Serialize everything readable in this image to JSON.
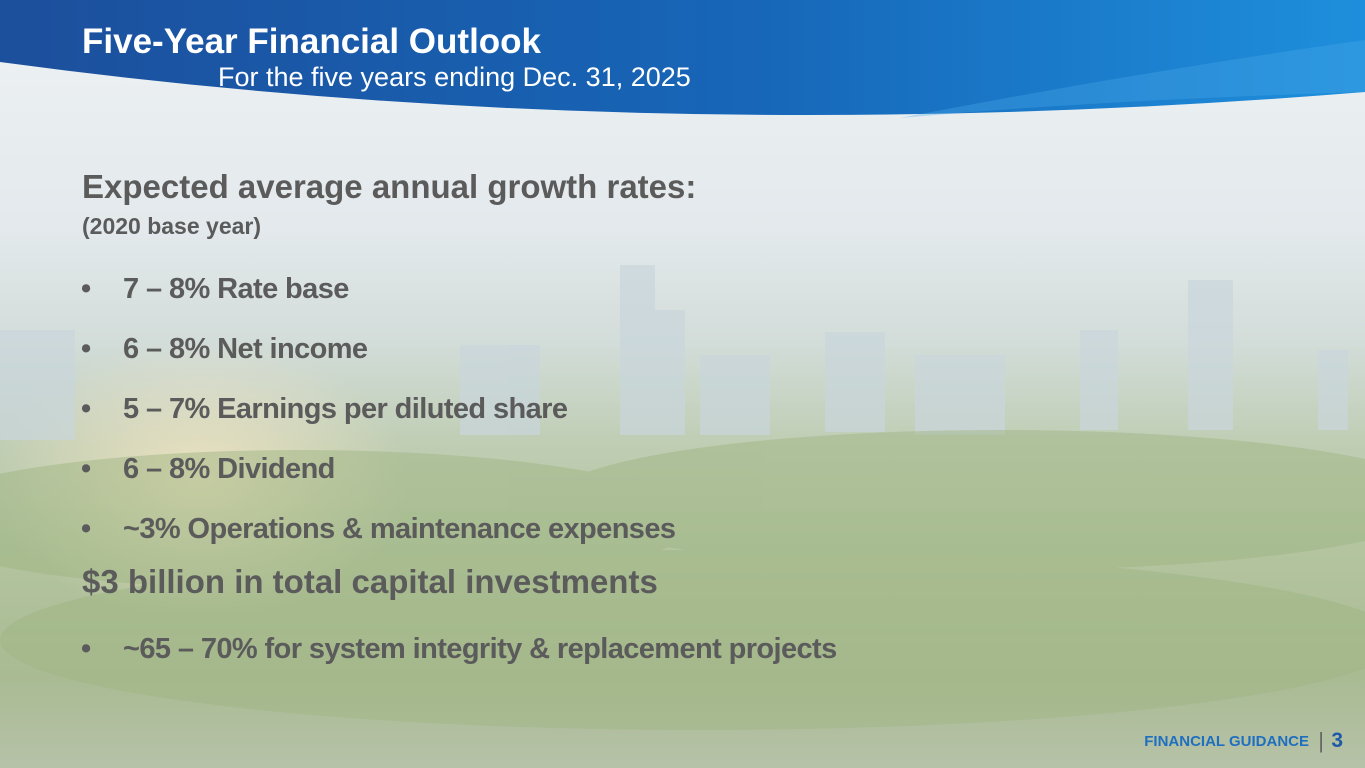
{
  "header": {
    "title": "Five-Year Financial Outlook",
    "subtitle": "For the five years ending Dec. 31, 2025"
  },
  "sections": [
    {
      "heading": "Expected average annual growth rates:",
      "note": "(2020 base year)",
      "bullets": [
        "7 – 8% Rate base",
        "6 – 8% Net income",
        "5 – 7% Earnings per diluted share",
        "6 – 8% Dividend",
        "~3% Operations & maintenance expenses"
      ]
    },
    {
      "heading": "$3 billion in total capital investments",
      "bullets": [
        "~65 – 70% for system integrity & replacement projects"
      ]
    }
  ],
  "footer": {
    "label": "FINANCIAL GUIDANCE",
    "page": "3"
  }
}
